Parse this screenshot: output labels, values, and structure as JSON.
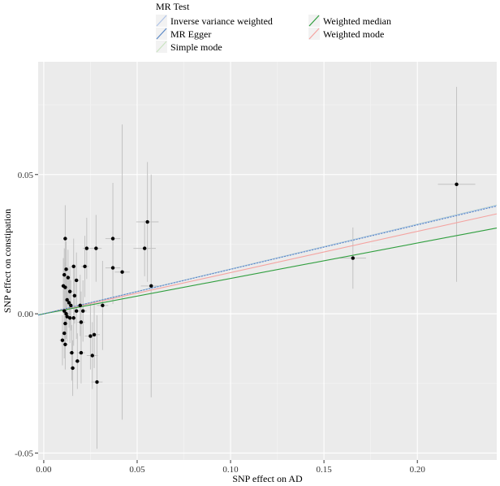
{
  "chart_data": {
    "type": "scatter",
    "xlabel": "SNP effect on AD",
    "ylabel": "SNP effect on constipation",
    "xlim": [
      -0.003,
      0.2425
    ],
    "ylim": [
      -0.0525,
      0.0905
    ],
    "x_ticks": [
      0.0,
      0.05,
      0.1,
      0.15,
      0.2
    ],
    "x_tick_labels": [
      "0.00",
      "0.05",
      "0.10",
      "0.15",
      "0.20"
    ],
    "y_ticks": [
      -0.05,
      0.0,
      0.05
    ],
    "y_tick_labels": [
      "-0.05",
      "0.00",
      "0.05"
    ],
    "grid": true,
    "legend": {
      "title": "MR Test",
      "position": "top",
      "items": [
        {
          "label": "Inverse variance weighted",
          "color": "#aec3e8"
        },
        {
          "label": "Weighted median",
          "color": "#2f9e3e"
        },
        {
          "label": "MR Egger",
          "color": "#5a88c6"
        },
        {
          "label": "Weighted mode",
          "color": "#f4a3a0"
        },
        {
          "label": "Simple mode",
          "color": "#c9e3c0"
        }
      ]
    },
    "lines": [
      {
        "name": "Inverse variance weighted",
        "slope": 0.1605,
        "color": "#aec3e8"
      },
      {
        "name": "MR Egger",
        "slope": 0.1595,
        "color": "#5a88c6"
      },
      {
        "name": "Simple mode",
        "slope": 0.161,
        "color": "#c9e3c0"
      },
      {
        "name": "Weighted median",
        "slope": 0.127,
        "color": "#2f9e3e"
      },
      {
        "name": "Weighted mode",
        "slope": 0.148,
        "color": "#f4a3a0"
      }
    ],
    "points": [
      {
        "x": 0.0115,
        "y": 0.027,
        "xse": 0.001,
        "yse": 0.012
      },
      {
        "x": 0.012,
        "y": 0.016,
        "xse": 0.0015,
        "yse": 0.01
      },
      {
        "x": 0.011,
        "y": 0.014,
        "xse": 0.0015,
        "yse": 0.0095
      },
      {
        "x": 0.013,
        "y": 0.013,
        "xse": 0.0015,
        "yse": 0.01
      },
      {
        "x": 0.0105,
        "y": 0.01,
        "xse": 0.0015,
        "yse": 0.01
      },
      {
        "x": 0.0115,
        "y": 0.0095,
        "xse": 0.0015,
        "yse": 0.009
      },
      {
        "x": 0.014,
        "y": 0.008,
        "xse": 0.0015,
        "yse": 0.009
      },
      {
        "x": 0.0125,
        "y": 0.005,
        "xse": 0.0015,
        "yse": 0.009
      },
      {
        "x": 0.0135,
        "y": 0.004,
        "xse": 0.0015,
        "yse": 0.009
      },
      {
        "x": 0.0145,
        "y": 0.003,
        "xse": 0.0015,
        "yse": 0.009
      },
      {
        "x": 0.011,
        "y": 0.001,
        "xse": 0.0015,
        "yse": 0.009
      },
      {
        "x": 0.012,
        "y": 0.0,
        "xse": 0.0015,
        "yse": 0.009
      },
      {
        "x": 0.0125,
        "y": -0.001,
        "xse": 0.0015,
        "yse": 0.009
      },
      {
        "x": 0.014,
        "y": -0.0015,
        "xse": 0.0015,
        "yse": 0.009
      },
      {
        "x": 0.0115,
        "y": -0.0035,
        "xse": 0.0015,
        "yse": 0.009
      },
      {
        "x": 0.011,
        "y": -0.007,
        "xse": 0.0015,
        "yse": 0.009
      },
      {
        "x": 0.01,
        "y": -0.0095,
        "xse": 0.0015,
        "yse": 0.009
      },
      {
        "x": 0.0115,
        "y": -0.011,
        "xse": 0.0015,
        "yse": 0.009
      },
      {
        "x": 0.015,
        "y": -0.014,
        "xse": 0.0015,
        "yse": 0.01
      },
      {
        "x": 0.0155,
        "y": -0.0195,
        "xse": 0.0015,
        "yse": 0.01
      },
      {
        "x": 0.016,
        "y": 0.017,
        "xse": 0.0015,
        "yse": 0.01
      },
      {
        "x": 0.0175,
        "y": 0.012,
        "xse": 0.0015,
        "yse": 0.01
      },
      {
        "x": 0.0165,
        "y": 0.0065,
        "xse": 0.0015,
        "yse": 0.01
      },
      {
        "x": 0.0175,
        "y": 0.001,
        "xse": 0.0015,
        "yse": 0.01
      },
      {
        "x": 0.016,
        "y": -0.0015,
        "xse": 0.0015,
        "yse": 0.01
      },
      {
        "x": 0.018,
        "y": -0.017,
        "xse": 0.0015,
        "yse": 0.01
      },
      {
        "x": 0.0195,
        "y": 0.003,
        "xse": 0.002,
        "yse": 0.011
      },
      {
        "x": 0.02,
        "y": -0.003,
        "xse": 0.002,
        "yse": 0.011
      },
      {
        "x": 0.02,
        "y": -0.014,
        "xse": 0.002,
        "yse": 0.011
      },
      {
        "x": 0.022,
        "y": 0.017,
        "xse": 0.002,
        "yse": 0.011
      },
      {
        "x": 0.023,
        "y": 0.0235,
        "xse": 0.002,
        "yse": 0.011
      },
      {
        "x": 0.021,
        "y": 0.001,
        "xse": 0.002,
        "yse": 0.011
      },
      {
        "x": 0.025,
        "y": -0.008,
        "xse": 0.003,
        "yse": 0.012
      },
      {
        "x": 0.026,
        "y": -0.015,
        "xse": 0.003,
        "yse": 0.012
      },
      {
        "x": 0.027,
        "y": -0.0075,
        "xse": 0.003,
        "yse": 0.012
      },
      {
        "x": 0.028,
        "y": 0.0235,
        "xse": 0.003,
        "yse": 0.012
      },
      {
        "x": 0.0285,
        "y": -0.0245,
        "xse": 0.003,
        "yse": 0.024
      },
      {
        "x": 0.0315,
        "y": 0.003,
        "xse": 0.003,
        "yse": 0.016
      },
      {
        "x": 0.037,
        "y": 0.027,
        "xse": 0.004,
        "yse": 0.02
      },
      {
        "x": 0.037,
        "y": 0.0165,
        "xse": 0.004,
        "yse": 0.013
      },
      {
        "x": 0.042,
        "y": 0.015,
        "xse": 0.004,
        "yse": 0.053
      },
      {
        "x": 0.054,
        "y": 0.0235,
        "xse": 0.006,
        "yse": 0.01
      },
      {
        "x": 0.0555,
        "y": 0.033,
        "xse": 0.006,
        "yse": 0.0215
      },
      {
        "x": 0.0575,
        "y": 0.01,
        "xse": 0.0055,
        "yse": 0.04
      },
      {
        "x": 0.1655,
        "y": 0.02,
        "xse": 0.007,
        "yse": 0.011
      },
      {
        "x": 0.221,
        "y": 0.0465,
        "xse": 0.01,
        "yse": 0.035
      }
    ]
  }
}
